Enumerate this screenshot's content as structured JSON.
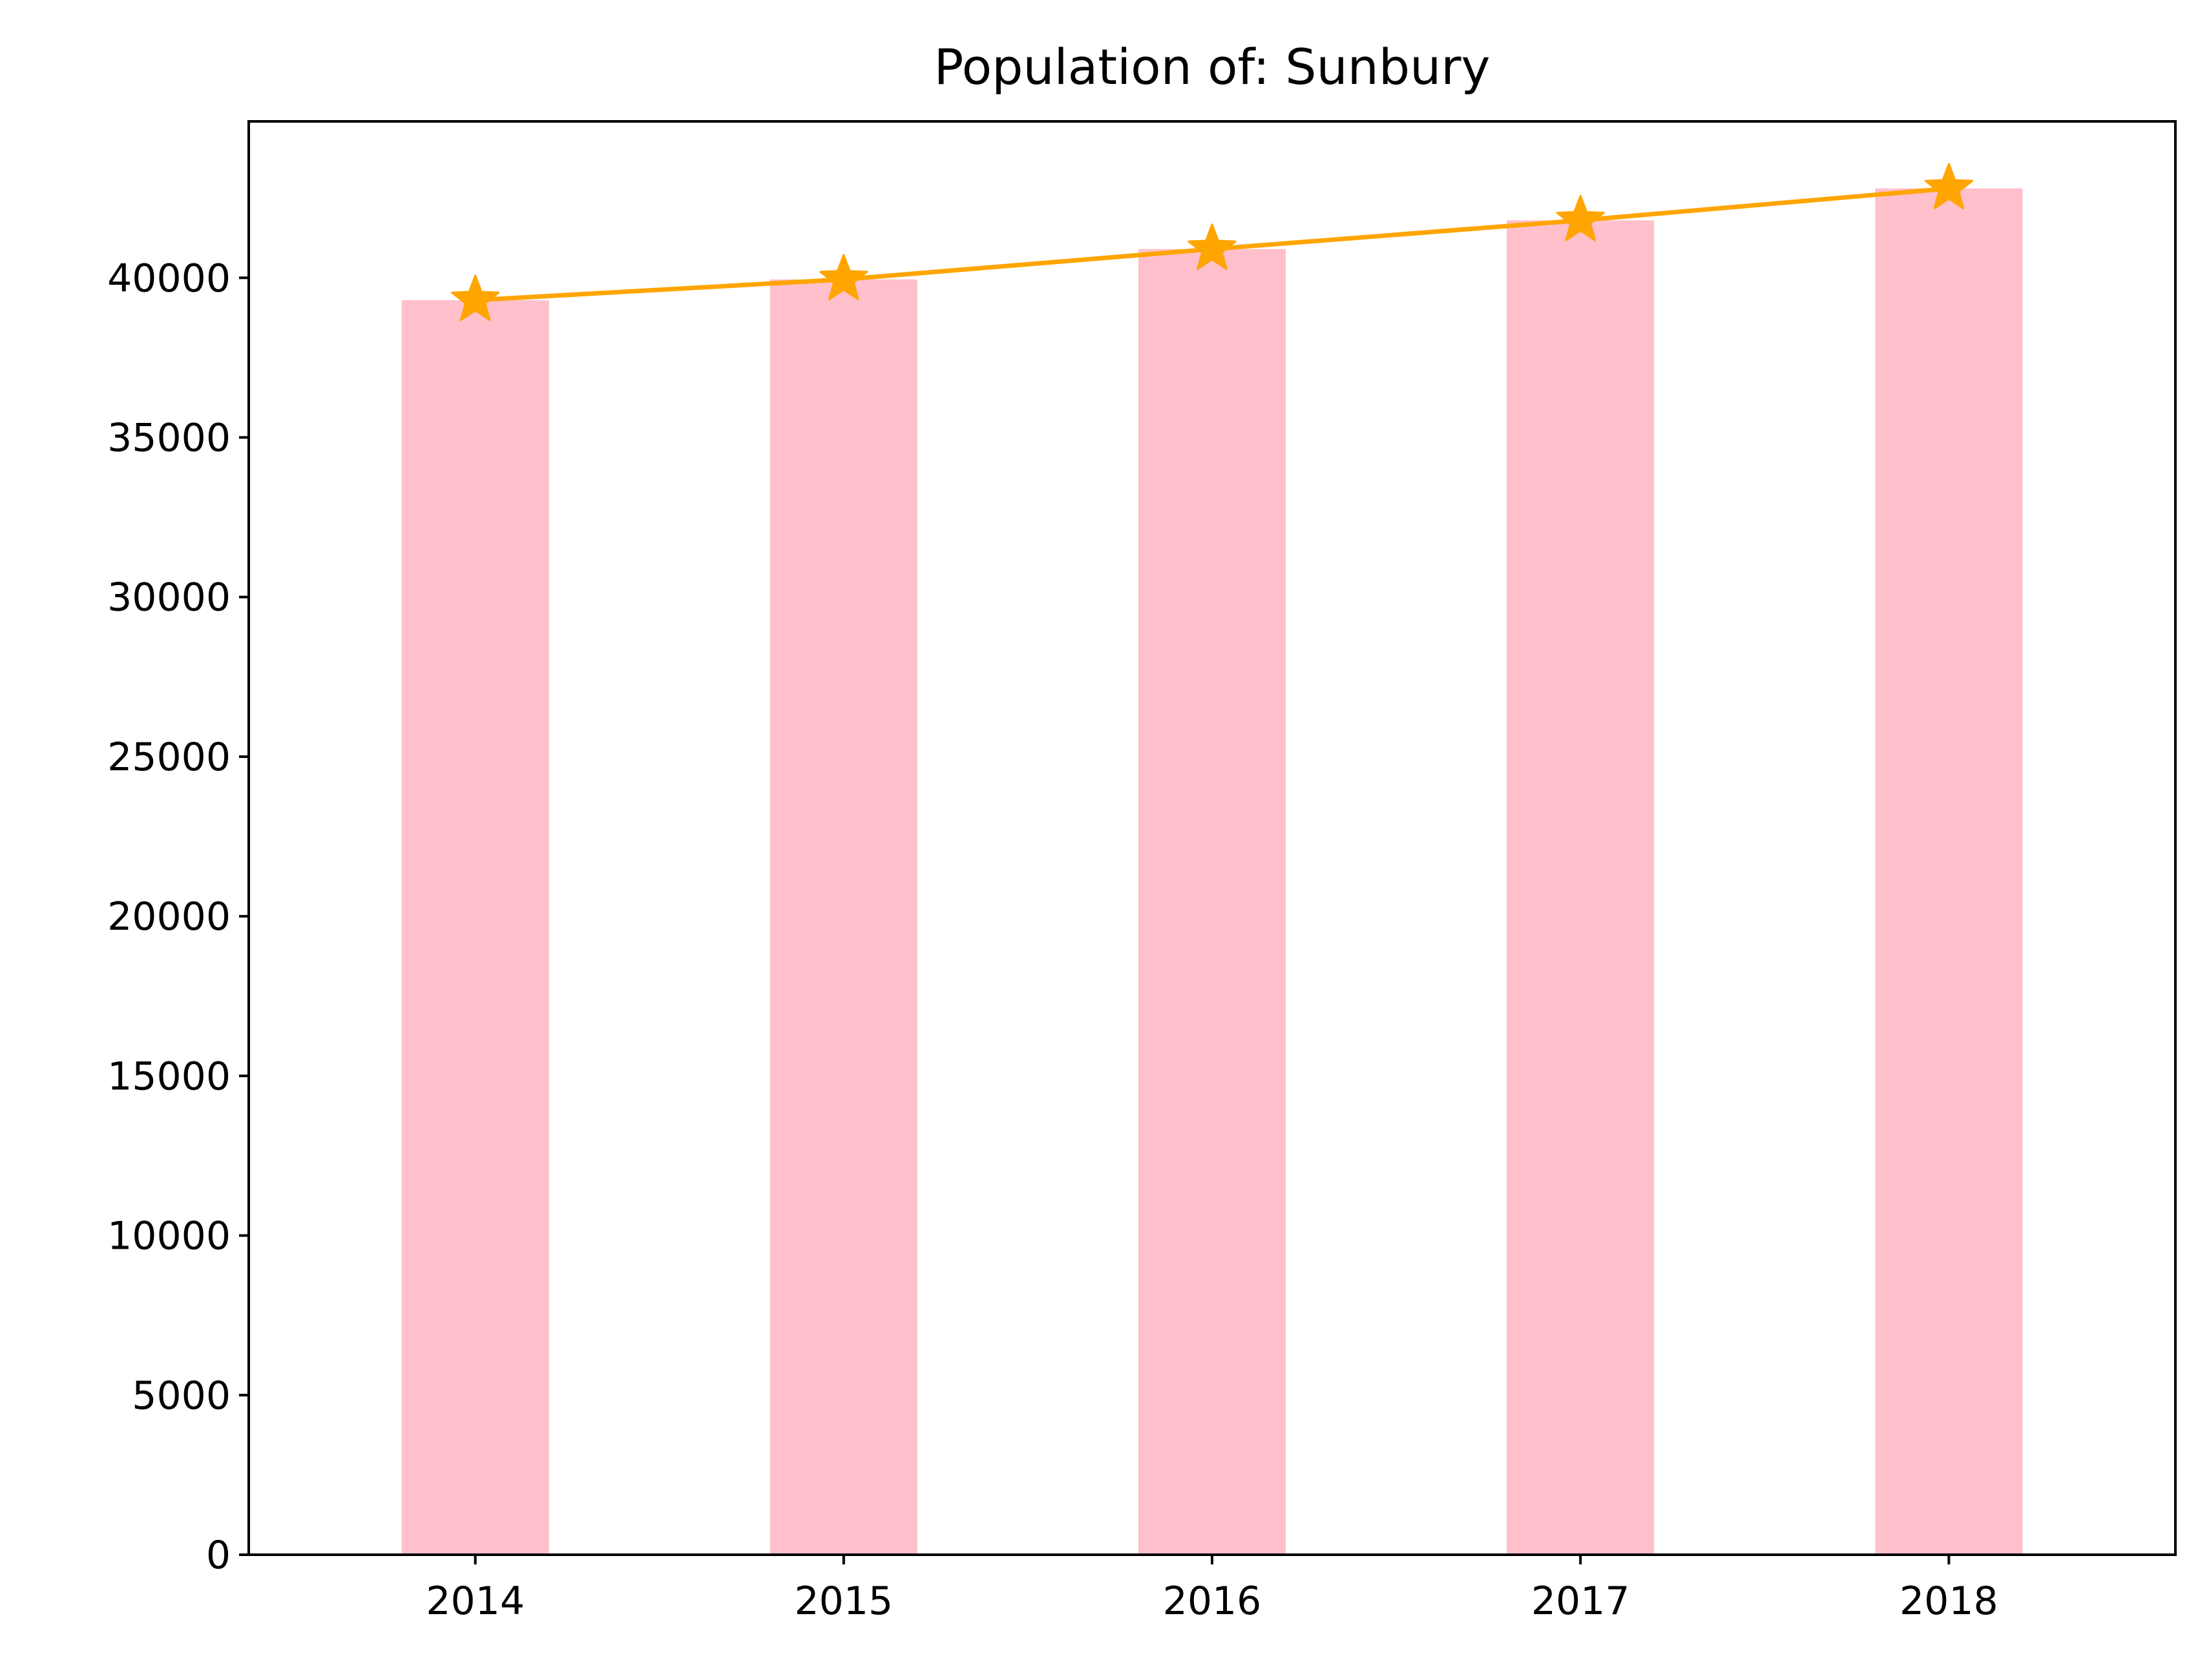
{
  "chart_data": {
    "type": "bar",
    "title": "Population of: Sunbury",
    "xlabel": "",
    "ylabel": "",
    "categories": [
      "2014",
      "2015",
      "2016",
      "2017",
      "2018"
    ],
    "series": [
      {
        "type": "bar",
        "values": [
          39300,
          39950,
          40900,
          41800,
          42800
        ]
      },
      {
        "type": "line",
        "marker": "star",
        "values": [
          39300,
          39950,
          40900,
          41800,
          42800
        ]
      }
    ],
    "ylim": [
      0,
      44900
    ],
    "yticks": [
      "0",
      "5000",
      "10000",
      "15000",
      "20000",
      "25000",
      "30000",
      "35000",
      "40000"
    ],
    "grid": false,
    "legend": "none",
    "colors": {
      "bar": "#ffc0cb",
      "line": "#ffa500"
    }
  }
}
